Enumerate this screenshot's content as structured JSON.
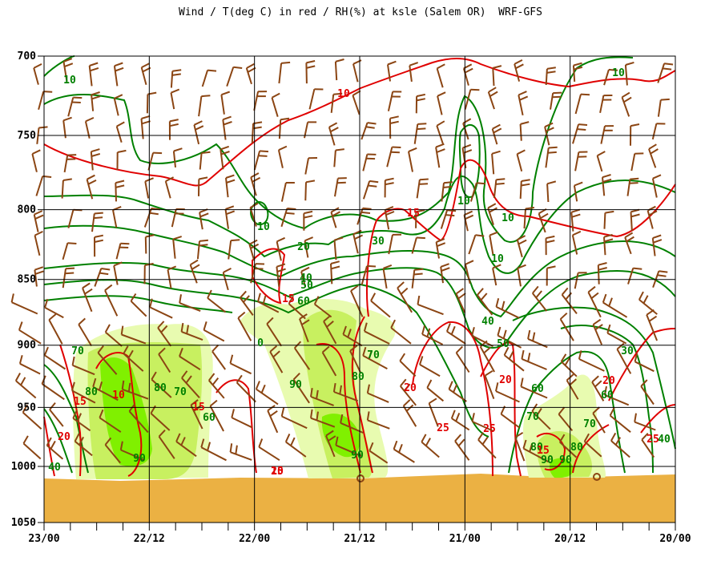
{
  "chart_data": {
    "type": "contour",
    "title": "Wind / T(deg C) in red / RH(%) at ksle (Salem OR)  WRF-GFS",
    "x_tick_labels": [
      "23/00",
      "22/12",
      "22/00",
      "21/12",
      "21/00",
      "20/12",
      "20/00"
    ],
    "y_tick_labels": [
      "700",
      "750",
      "800",
      "850",
      "900",
      "950",
      "1000",
      "1050"
    ],
    "ylim": [
      700,
      1050
    ],
    "y_scale": "log-pressure",
    "grid": true,
    "colors": {
      "temperature": "#e00000",
      "rh": "#008000",
      "wind": "#8b4513",
      "terrain": "#ebb143",
      "rh_70": "#e8fbb0",
      "rh_80": "#c8f060",
      "rh_90": "#80f000"
    },
    "temperature_labels": [
      {
        "text": "10",
        "time": "21/12",
        "pressure": 720
      },
      {
        "text": "15",
        "time": "21/12",
        "pressure": 815
      },
      {
        "text": "15",
        "time": "22/00",
        "pressure": 872
      },
      {
        "text": "10",
        "time": "22/12",
        "pressure": 950
      },
      {
        "text": "15",
        "time": "22/12",
        "pressure": 955
      },
      {
        "text": "15",
        "time": "23/00",
        "pressure": 948
      },
      {
        "text": "20",
        "time": "23/00",
        "pressure": 985
      },
      {
        "text": "10",
        "time": "22/00",
        "pressure": 930
      },
      {
        "text": "20",
        "time": "21/12",
        "pressure": 930
      },
      {
        "text": "25",
        "time": "21/00",
        "pressure": 980
      },
      {
        "text": "25",
        "time": "21/00",
        "pressure": 980
      },
      {
        "text": "20",
        "time": "21/00",
        "pressure": 925
      },
      {
        "text": "15",
        "time": "20/12",
        "pressure": 993
      },
      {
        "text": "20",
        "time": "20/12",
        "pressure": 925
      },
      {
        "text": "25",
        "time": "20/00",
        "pressure": 985
      },
      {
        "text": "25",
        "time": "22/00",
        "pressure": 1017
      }
    ],
    "rh_labels": [
      {
        "text": "10",
        "time": "23/00",
        "pressure": 716
      },
      {
        "text": "10",
        "time": "20/12",
        "pressure": 710
      },
      {
        "text": "10",
        "time": "22/00",
        "pressure": 815
      },
      {
        "text": "20",
        "time": "22/00",
        "pressure": 837
      },
      {
        "text": "30",
        "time": "21/12",
        "pressure": 830
      },
      {
        "text": "40",
        "time": "22/00",
        "pressure": 858
      },
      {
        "text": "50",
        "time": "22/00",
        "pressure": 865
      },
      {
        "text": "60",
        "time": "22/00",
        "pressure": 878
      },
      {
        "text": "10",
        "time": "21/00",
        "pressure": 797
      },
      {
        "text": "10",
        "time": "21/00",
        "pressure": 810
      },
      {
        "text": "10",
        "time": "21/00",
        "pressure": 843
      },
      {
        "text": "40",
        "time": "21/00",
        "pressure": 900
      },
      {
        "text": "50",
        "time": "21/00",
        "pressure": 911
      },
      {
        "text": "70",
        "time": "23/00",
        "pressure": 914
      },
      {
        "text": "80",
        "time": "23/00",
        "pressure": 940
      },
      {
        "text": "80",
        "time": "22/12",
        "pressure": 938
      },
      {
        "text": "70",
        "time": "22/12",
        "pressure": 940
      },
      {
        "text": "60",
        "time": "22/12",
        "pressure": 967
      },
      {
        "text": "90",
        "time": "22/12",
        "pressure": 998
      },
      {
        "text": "70",
        "time": "21/12",
        "pressure": 914
      },
      {
        "text": "80",
        "time": "21/12",
        "pressure": 934
      },
      {
        "text": "90",
        "time": "22/00",
        "pressure": 937
      },
      {
        "text": "90",
        "time": "21/12",
        "pressure": 995
      },
      {
        "text": "60",
        "time": "20/12",
        "pressure": 938
      },
      {
        "text": "70",
        "time": "20/12",
        "pressure": 963
      },
      {
        "text": "80",
        "time": "20/12",
        "pressure": 986
      },
      {
        "text": "90",
        "time": "20/12",
        "pressure": 998
      },
      {
        "text": "90",
        "time": "20/12",
        "pressure": 998
      },
      {
        "text": "80",
        "time": "20/12",
        "pressure": 991
      },
      {
        "text": "70",
        "time": "20/12",
        "pressure": 971
      },
      {
        "text": "60",
        "time": "20/12",
        "pressure": 957
      },
      {
        "text": "30",
        "time": "20/00",
        "pressure": 915
      },
      {
        "text": "40",
        "time": "20/00",
        "pressure": 984
      },
      {
        "text": "40",
        "time": "23/00",
        "pressure": 1003
      },
      {
        "text": "0",
        "time": "22/00",
        "pressure": 914
      }
    ]
  }
}
